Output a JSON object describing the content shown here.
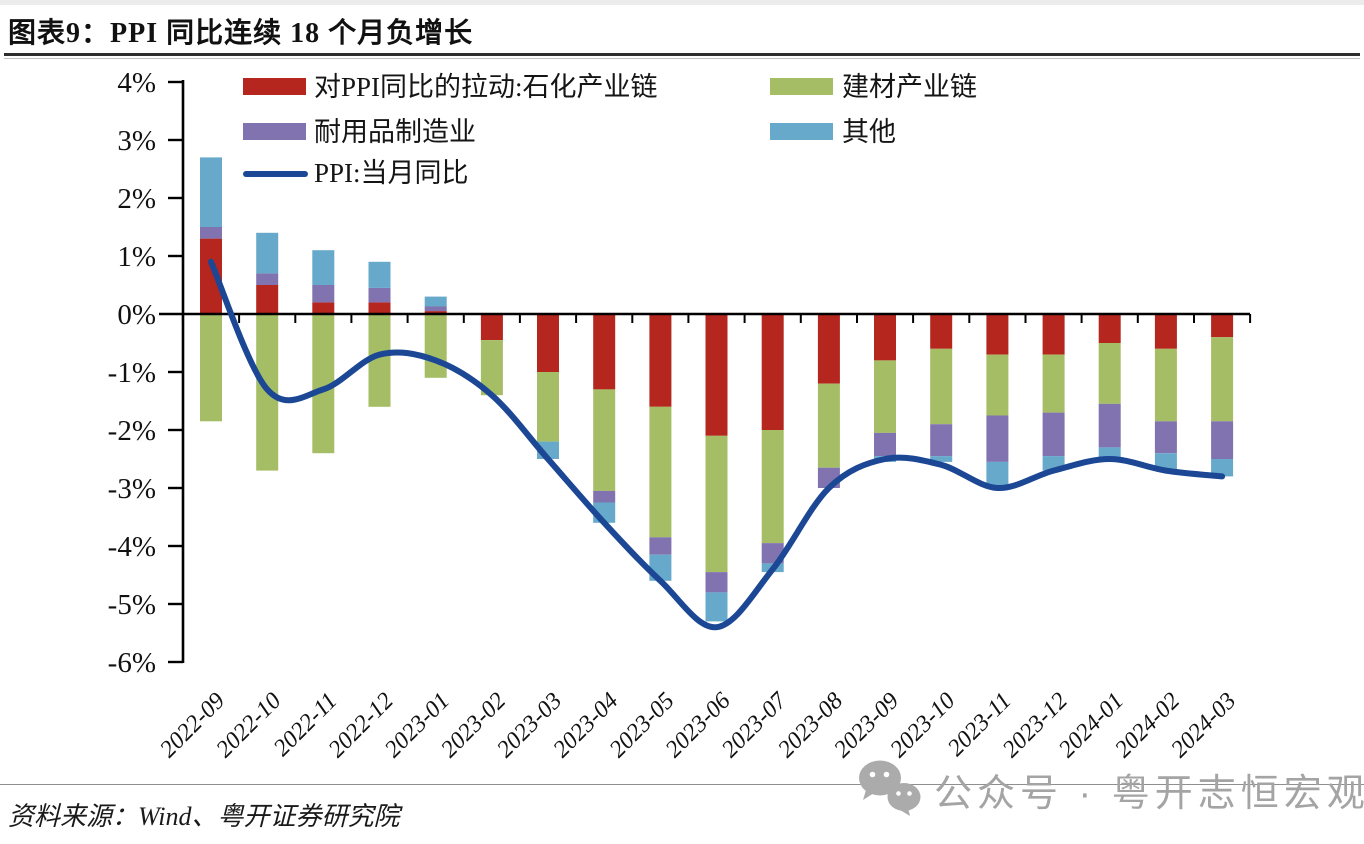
{
  "title": "图表9：PPI 同比连续 18 个月负增长",
  "source": {
    "text": "资料来源：Wind、粤开证券研究院"
  },
  "watermark": {
    "icon": "wechat-icon",
    "text": "公众号 · 粤开志恒宏观",
    "color": "#a4a4a4"
  },
  "colors": {
    "petrochemical_red": "#B4261E",
    "building_green": "#A5BD65",
    "durables_purple": "#8173AF",
    "other_blue": "#66A9CA",
    "ppi_line_navy": "#1B4795",
    "axis_black": "#000000"
  },
  "chart_data": {
    "type": "bar",
    "subtype": "stacked-bar-with-line",
    "title": "图表9：PPI 同比连续 18 个月负增长",
    "xlabel": "",
    "ylabel": "",
    "ylim": [
      -6,
      4
    ],
    "yticks": [
      "4%",
      "3%",
      "2%",
      "1%",
      "0%",
      "-1%",
      "-2%",
      "-3%",
      "-4%",
      "-5%",
      "-6%"
    ],
    "grid": false,
    "legend_position": "top",
    "categories": [
      "2022-09",
      "2022-10",
      "2022-11",
      "2022-12",
      "2023-01",
      "2023-02",
      "2023-03",
      "2023-04",
      "2023-05",
      "2023-06",
      "2023-07",
      "2023-08",
      "2023-09",
      "2023-10",
      "2023-11",
      "2023-12",
      "2024-01",
      "2024-02",
      "2024-03"
    ],
    "series": [
      {
        "name": "对PPI同比的拉动:石化产业链",
        "color": "#B4261E",
        "values": [
          1.3,
          0.5,
          0.2,
          0.2,
          0.05,
          -0.45,
          -1.0,
          -1.3,
          -1.6,
          -2.1,
          -2.0,
          -1.2,
          -0.8,
          -0.6,
          -0.7,
          -0.7,
          -0.5,
          -0.6,
          -0.4
        ]
      },
      {
        "name": "建材产业链",
        "color": "#A5BD65",
        "values": [
          -1.85,
          -2.7,
          -2.4,
          -1.6,
          -1.1,
          -0.95,
          -1.2,
          -1.75,
          -2.25,
          -2.35,
          -1.95,
          -1.45,
          -1.25,
          -1.3,
          -1.05,
          -1.0,
          -1.05,
          -1.25,
          -1.45
        ]
      },
      {
        "name": "耐用品制造业",
        "color": "#8173AF",
        "values": [
          0.2,
          0.2,
          0.3,
          0.25,
          0.08,
          0,
          0,
          -0.2,
          -0.3,
          -0.35,
          -0.35,
          -0.35,
          -0.4,
          -0.55,
          -0.8,
          -0.75,
          -0.75,
          -0.55,
          -0.65
        ]
      },
      {
        "name": "其他",
        "color": "#66A9CA",
        "values": [
          1.2,
          0.7,
          0.6,
          0.45,
          0.17,
          0,
          -0.3,
          -0.35,
          -0.45,
          -0.5,
          -0.15,
          0,
          -0.1,
          -0.1,
          -0.45,
          -0.25,
          -0.2,
          -0.3,
          -0.3
        ]
      }
    ],
    "line": {
      "name": "PPI:当月同比",
      "color": "#1B4795",
      "values": [
        0.9,
        -1.3,
        -1.3,
        -0.7,
        -0.8,
        -1.4,
        -2.5,
        -3.6,
        -4.6,
        -5.4,
        -4.4,
        -3.0,
        -2.5,
        -2.6,
        -3.0,
        -2.7,
        -2.5,
        -2.7,
        -2.8
      ]
    }
  }
}
